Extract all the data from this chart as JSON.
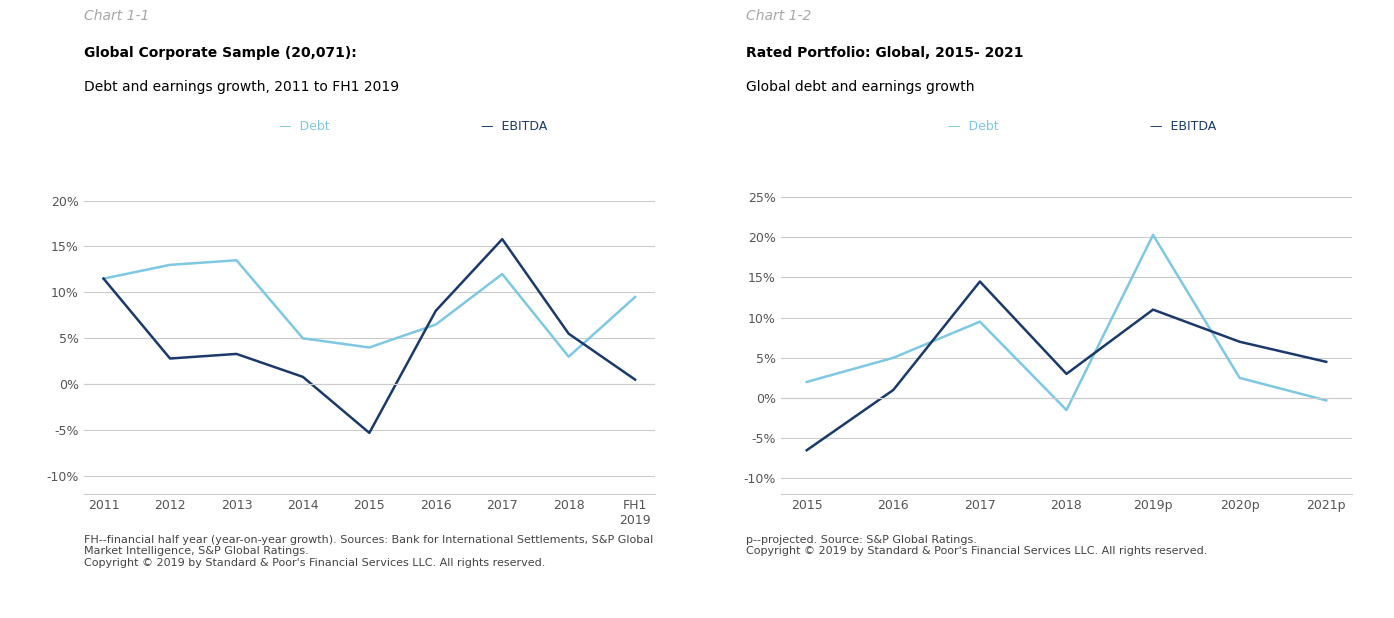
{
  "chart1": {
    "title_label": "Chart 1-1",
    "bold_title": "Global Corporate Sample (20,071):",
    "sub_title": "Debt and earnings growth, 2011 to FH1 2019",
    "x_labels": [
      "2011",
      "2012",
      "2013",
      "2014",
      "2015",
      "2016",
      "2017",
      "2018",
      "FH1\n2019"
    ],
    "debt_values": [
      11.5,
      13.0,
      13.5,
      5.0,
      4.0,
      6.5,
      12.0,
      3.0,
      9.5
    ],
    "ebitda_values": [
      11.5,
      2.8,
      3.3,
      0.8,
      -5.3,
      8.0,
      15.8,
      5.5,
      0.5
    ],
    "ylim": [
      -12,
      23
    ],
    "yticks": [
      -10,
      -5,
      0,
      5,
      10,
      15,
      20
    ],
    "footnote": "FH--financial half year (year-on-year growth). Sources: Bank for International Settlements, S&P Global\nMarket Intelligence, S&P Global Ratings.\nCopyright © 2019 by Standard & Poor's Financial Services LLC. All rights reserved."
  },
  "chart2": {
    "title_label": "Chart 1-2",
    "bold_title": "Rated Portfolio: Global, 2015- 2021",
    "sub_title": "Global debt and earnings growth",
    "x_labels": [
      "2015",
      "2016",
      "2017",
      "2018",
      "2019p",
      "2020p",
      "2021p"
    ],
    "debt_values": [
      2.0,
      5.0,
      9.5,
      -1.5,
      20.3,
      2.5,
      -0.3
    ],
    "ebitda_values": [
      -6.5,
      1.0,
      14.5,
      3.0,
      11.0,
      7.0,
      4.5
    ],
    "ylim": [
      -12,
      28
    ],
    "yticks": [
      -10,
      -5,
      0,
      5,
      10,
      15,
      20,
      25
    ],
    "footnote": "p--projected. Source: S&P Global Ratings.\nCopyright © 2019 by Standard & Poor's Financial Services LLC. All rights reserved."
  },
  "debt_color": "#7EC8E3",
  "ebitda_color": "#1B3A6B",
  "title_label_color": "#A8A8A8",
  "line_width": 1.8,
  "bg_color": "#FFFFFF",
  "grid_color": "#CCCCCC",
  "tick_color": "#555555",
  "font_size_title_label": 10,
  "font_size_bold_title": 10,
  "font_size_sub_title": 10,
  "font_size_ticks": 9,
  "font_size_legend": 9,
  "font_size_footnote": 8
}
